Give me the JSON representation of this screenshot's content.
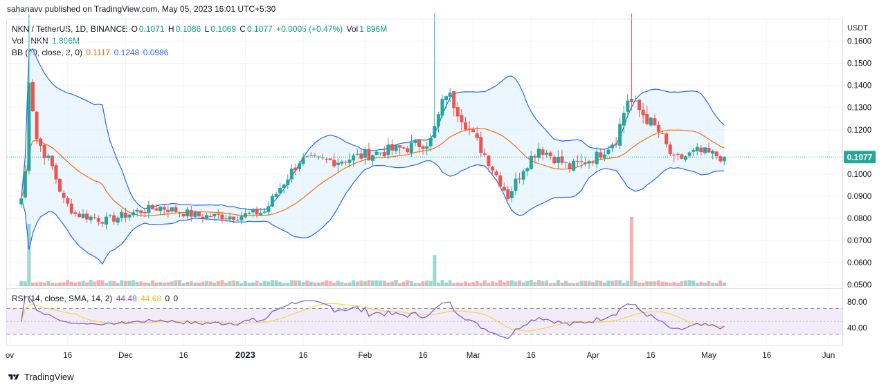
{
  "header": {
    "published": "sahanavv published on TradingView.com, May 05, 2023 16:01 UTC+5:30"
  },
  "legend": {
    "symbol": "NKN / TetherUS, 1D, BINANCE",
    "open_label": "O",
    "open": "0.1071",
    "high_label": "H",
    "high": "0.1086",
    "low_label": "L",
    "low": "0.1069",
    "close_label": "C",
    "close": "0.1077",
    "change": "+0.0005 (+0.47%)",
    "vol_label": "Vol",
    "vol": "1.896M",
    "volume_title": "Vol · NKN",
    "volume_value": "1.896M",
    "bb_title": "BB (20, close, 2, 0)",
    "bb_basis": "0.1117",
    "bb_upper": "0.1248",
    "bb_lower": "0.0986",
    "rsi_title": "RSI (14, close, SMA, 14, 2)",
    "rsi_value": "44.48",
    "rsi_sma": "44.68",
    "rsi_z1": "0",
    "rsi_z2": "0"
  },
  "footer": {
    "brand": "TradingView"
  },
  "colors": {
    "up": "#26a69a",
    "down": "#ef5350",
    "bb_band": "#2962ff",
    "bb_basis": "#ff6d00",
    "bb_fill": "#e3f2fd",
    "rsi_line": "#7e57c2",
    "rsi_sma": "#f5d547",
    "rsi_fill": "#ede7f6",
    "price_tag": "#26a69a",
    "grid": "#f0f3fa"
  },
  "chart_data": [
    {
      "type": "candlestick",
      "title": "NKN / TetherUS, 1D, BINANCE",
      "y_axis_unit": "USDT",
      "y_ticks": [
        "0.1600",
        "0.1500",
        "0.1400",
        "0.1300",
        "0.1200",
        "0.1100",
        "0.1000",
        "0.0900",
        "0.0800",
        "0.0700",
        "0.0600",
        "0.0500"
      ],
      "ylim": [
        0.0497,
        0.1705
      ],
      "last_price": "0.1077",
      "x_tick_labels": [
        "ov",
        "16",
        "Dec",
        "16",
        "2023",
        "16",
        "Feb",
        "16",
        "Mar",
        "16",
        "Apr",
        "16",
        "May",
        "16",
        "Jun"
      ],
      "close_anchors": [
        [
          "2022-11-04",
          0.089
        ],
        [
          "2022-11-05",
          0.101
        ],
        [
          "2022-11-06",
          0.144
        ],
        [
          "2022-11-08",
          0.116
        ],
        [
          "2022-11-12",
          0.103
        ],
        [
          "2022-11-15",
          0.088
        ],
        [
          "2022-11-18",
          0.082
        ],
        [
          "2022-11-26",
          0.079
        ],
        [
          "2022-12-04",
          0.083
        ],
        [
          "2022-12-10",
          0.085
        ],
        [
          "2022-12-20",
          0.081
        ],
        [
          "2022-12-30",
          0.081
        ],
        [
          "2023-01-06",
          0.083
        ],
        [
          "2023-01-10",
          0.094
        ],
        [
          "2023-01-15",
          0.106
        ],
        [
          "2023-01-25",
          0.106
        ],
        [
          "2023-02-05",
          0.11
        ],
        [
          "2023-02-12",
          0.112
        ],
        [
          "2023-02-18",
          0.115
        ],
        [
          "2023-02-22",
          0.137
        ],
        [
          "2023-02-24",
          0.132
        ],
        [
          "2023-03-01",
          0.117
        ],
        [
          "2023-03-05",
          0.106
        ],
        [
          "2023-03-10",
          0.09
        ],
        [
          "2023-03-14",
          0.103
        ],
        [
          "2023-03-18",
          0.112
        ],
        [
          "2023-03-26",
          0.103
        ],
        [
          "2023-04-02",
          0.108
        ],
        [
          "2023-04-07",
          0.116
        ],
        [
          "2023-04-10",
          0.134
        ],
        [
          "2023-04-14",
          0.127
        ],
        [
          "2023-04-18",
          0.119
        ],
        [
          "2023-04-22",
          0.106
        ],
        [
          "2023-04-28",
          0.11
        ],
        [
          "2023-05-05",
          0.1077
        ]
      ],
      "wick_spikes": [
        [
          "2022-11-06",
          0.172
        ],
        [
          "2023-02-19",
          0.173
        ],
        [
          "2023-04-11",
          0.173
        ]
      ]
    },
    {
      "type": "bar",
      "title": "Vol · NKN",
      "last": "1.896M",
      "spikes": [
        [
          "2022-11-06",
          0.9
        ],
        [
          "2023-02-19",
          0.45
        ],
        [
          "2023-04-11",
          1.0
        ]
      ]
    },
    {
      "type": "line",
      "title": "BB (20, close, 2, 0)",
      "series": [
        {
          "name": "basis",
          "last": 0.1117
        },
        {
          "name": "upper",
          "last": 0.1248
        },
        {
          "name": "lower",
          "last": 0.0986
        }
      ]
    },
    {
      "type": "line",
      "title": "RSI (14, close, SMA, 14, 2)",
      "y_ticks": [
        "80.00",
        "40.00"
      ],
      "ylim": [
        16,
        93
      ],
      "levels": [
        70,
        50,
        30
      ],
      "series": [
        {
          "name": "RSI",
          "last": 44.48
        },
        {
          "name": "SMA",
          "last": 44.68
        }
      ]
    }
  ]
}
